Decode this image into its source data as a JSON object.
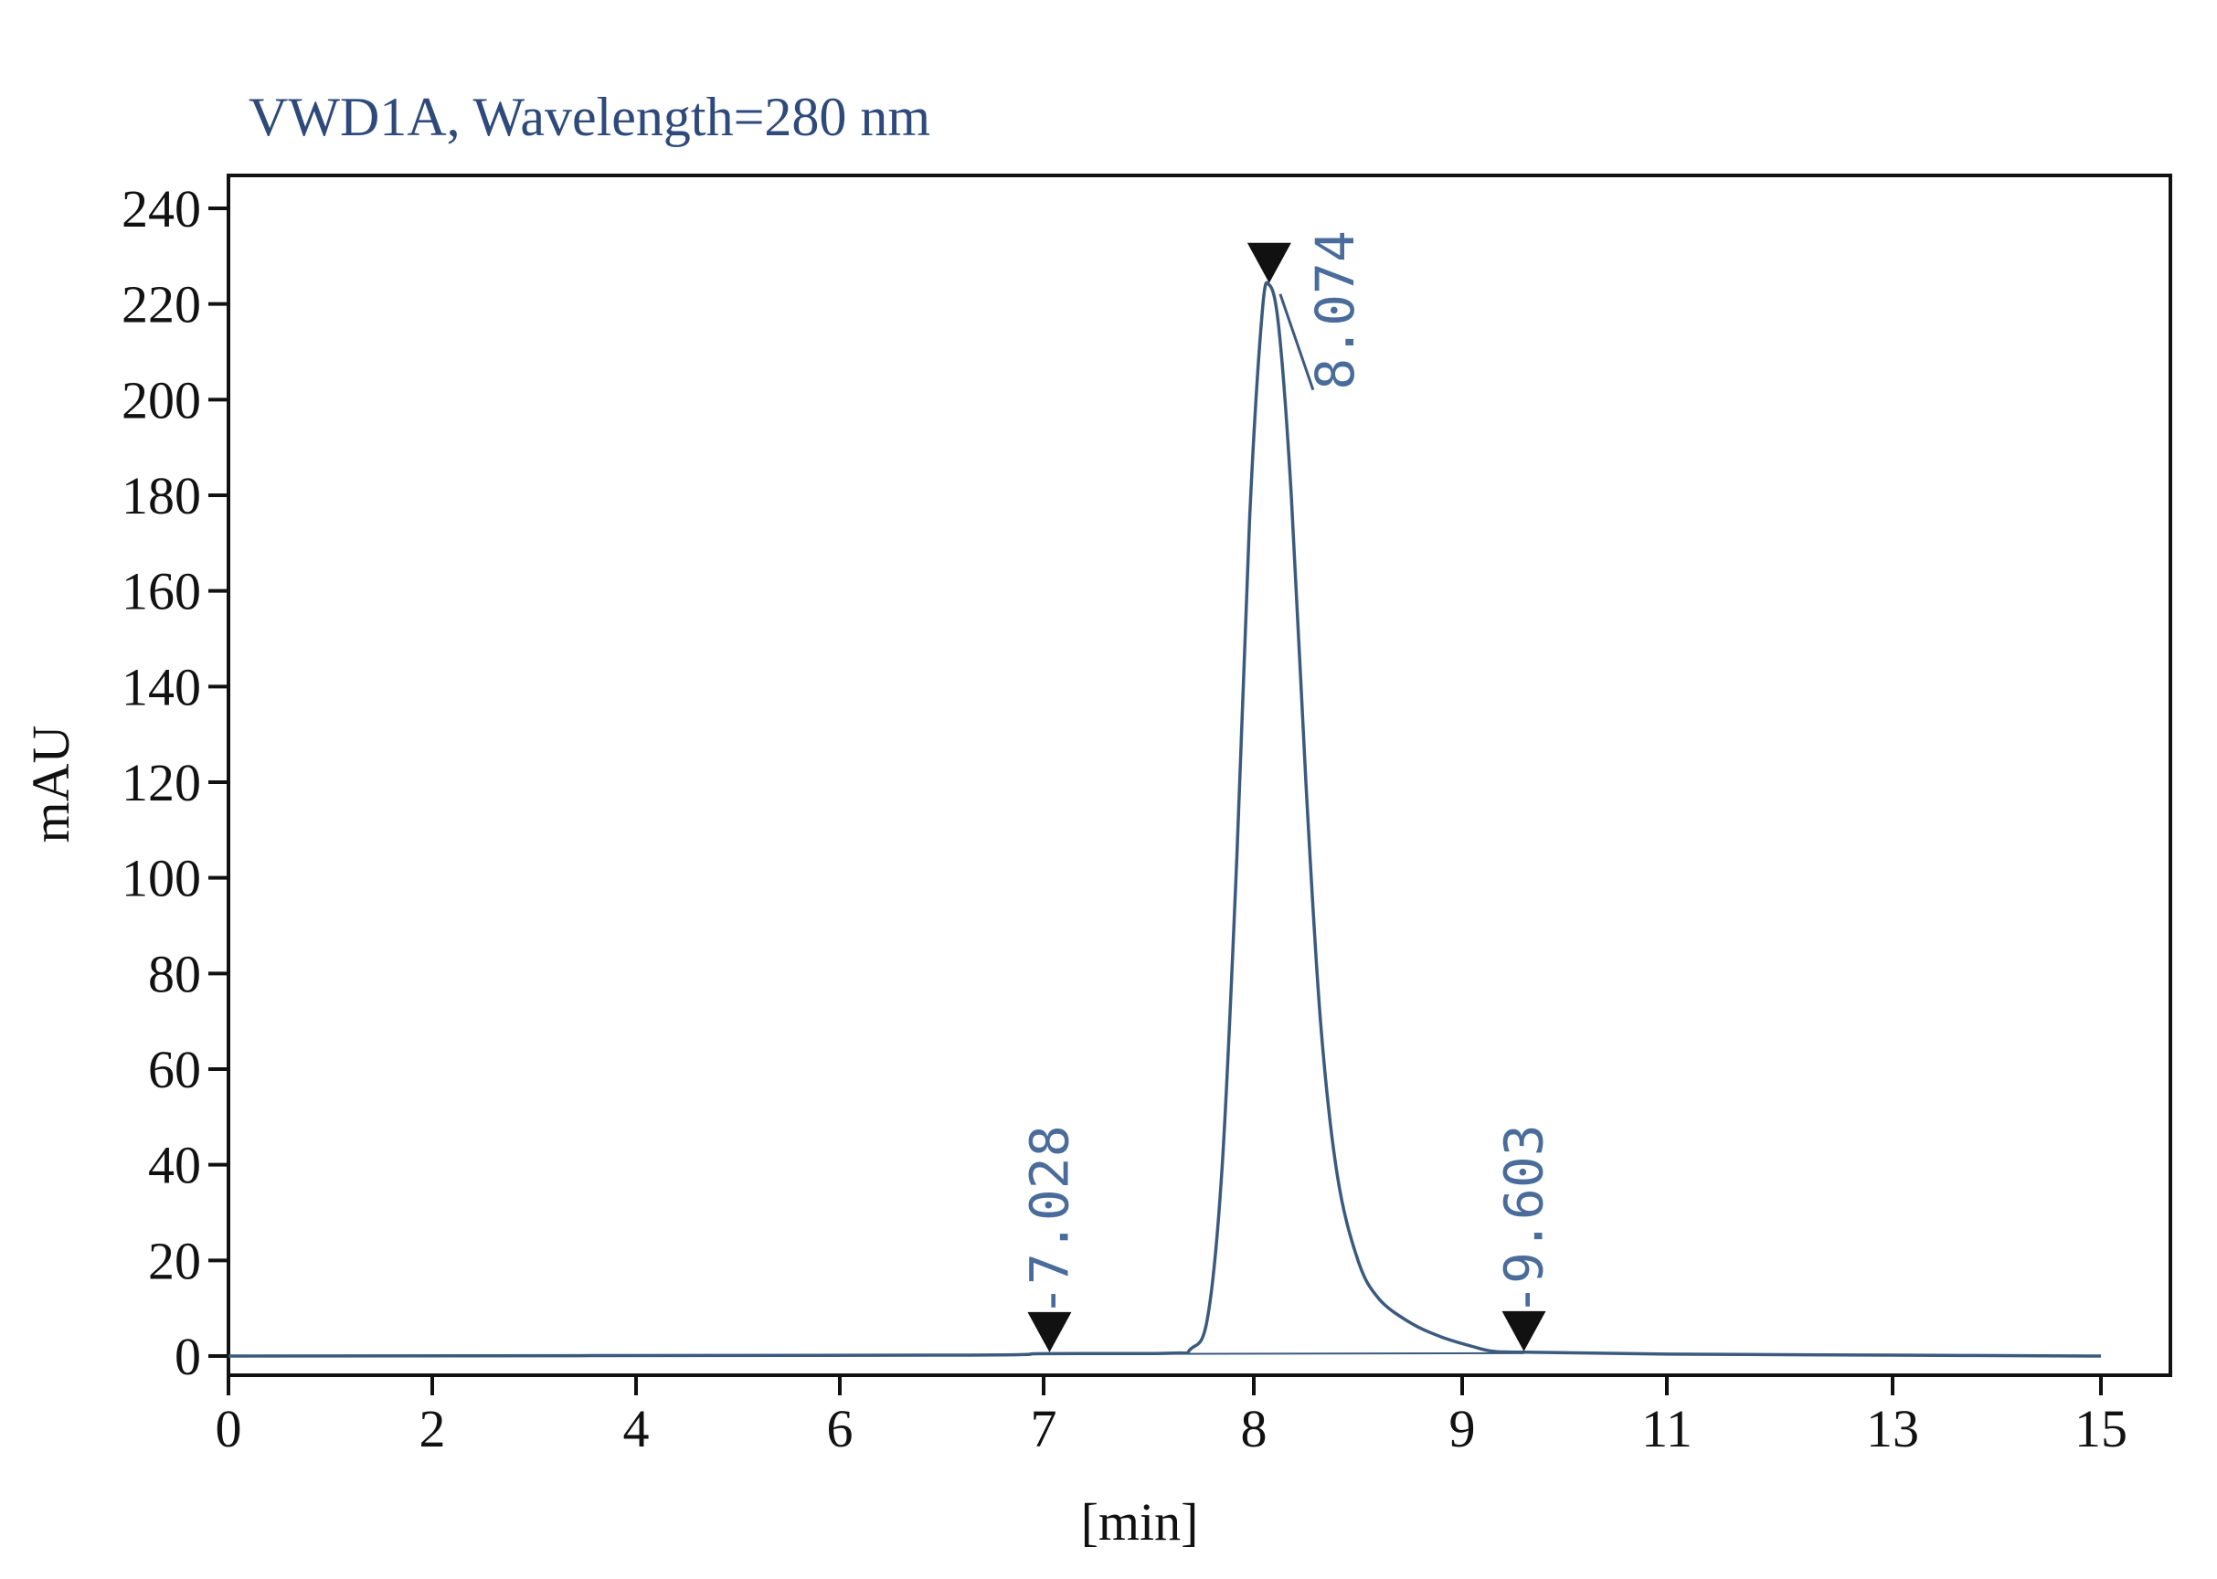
{
  "chart_data": {
    "type": "line",
    "title": "VWD1A, Wavelength=280 nm",
    "xlabel": "[min]",
    "ylabel": "mAU",
    "x_tick_labels": [
      "0",
      "2",
      "4",
      "6",
      "7",
      "8",
      "9",
      "11",
      "13",
      "15"
    ],
    "y_ticks": [
      0,
      20,
      40,
      60,
      80,
      100,
      120,
      140,
      160,
      180,
      200,
      220,
      240
    ],
    "ylim": [
      -5,
      245
    ],
    "grid": false,
    "legend": false,
    "series": [
      {
        "points": [
          [
            0,
            0
          ],
          [
            6.5,
            0.2
          ],
          [
            7.0,
            0.5
          ],
          [
            7.6,
            0.6
          ],
          [
            7.7,
            1.5
          ],
          [
            7.78,
            8
          ],
          [
            7.85,
            40
          ],
          [
            7.92,
            105
          ],
          [
            7.98,
            175
          ],
          [
            8.04,
            218
          ],
          [
            8.074,
            224
          ],
          [
            8.12,
            215
          ],
          [
            8.18,
            180
          ],
          [
            8.25,
            120
          ],
          [
            8.32,
            70
          ],
          [
            8.4,
            38
          ],
          [
            8.5,
            20
          ],
          [
            8.6,
            12
          ],
          [
            8.75,
            7
          ],
          [
            8.9,
            4
          ],
          [
            9.1,
            2
          ],
          [
            9.3,
            1
          ],
          [
            9.603,
            0.8
          ],
          [
            11,
            0.4
          ],
          [
            13,
            0.2
          ],
          [
            15,
            0
          ]
        ]
      }
    ],
    "baseline": [
      [
        7.028,
        0.4
      ],
      [
        9.603,
        0.6
      ]
    ],
    "peak_markers": [
      {
        "label": "7.028",
        "x": 7.028,
        "y": 0.4
      },
      {
        "label": "8.074",
        "x": 8.074,
        "y": 224
      },
      {
        "label": "9.603",
        "x": 9.603,
        "y": 0.6
      }
    ],
    "colors": {
      "trace": "#3b5a7e",
      "title": "#2e4a7a",
      "peak_label": "#4a6c9a",
      "frame": "#111111"
    }
  }
}
